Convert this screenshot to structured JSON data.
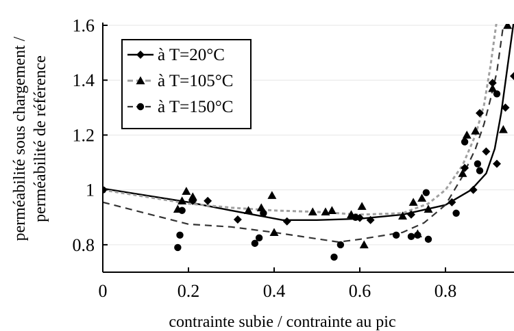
{
  "chart_data": {
    "type": "scatter",
    "xlabel": "contrainte subie / contrainte au pic",
    "ylabel_line1": "perméabilité sous chargement /",
    "ylabel_line2": "perméabilité de référence",
    "xlim": [
      0,
      0.96
    ],
    "ylim": [
      0.7,
      1.6
    ],
    "x_ticks": [
      0,
      0.2,
      0.4,
      0.6,
      0.8
    ],
    "x_tick_labels": [
      "0",
      "0.2",
      "0.4",
      "0.6",
      "0.8"
    ],
    "y_ticks": [
      0.8,
      1,
      1.2,
      1.4,
      1.6
    ],
    "y_tick_labels": [
      "0.8",
      "1",
      "1.2",
      "1.4",
      "1.6"
    ],
    "grid": "horizontal",
    "legend_position": "top-left",
    "series": [
      {
        "name": "à T=20°C",
        "marker": "diamond",
        "color": "#000000",
        "line_style": "solid",
        "points": [
          [
            0.0,
            1.0
          ],
          [
            0.21,
            0.96
          ],
          [
            0.245,
            0.96
          ],
          [
            0.315,
            0.892
          ],
          [
            0.43,
            0.885
          ],
          [
            0.6,
            0.898
          ],
          [
            0.625,
            0.89
          ],
          [
            0.72,
            0.91
          ],
          [
            0.815,
            0.955
          ],
          [
            0.845,
            1.08
          ],
          [
            0.865,
            1.0
          ],
          [
            0.88,
            1.28
          ],
          [
            0.895,
            1.14
          ],
          [
            0.91,
            1.39
          ],
          [
            0.92,
            1.095
          ],
          [
            0.94,
            1.3
          ],
          [
            0.96,
            1.415
          ]
        ],
        "curve": [
          [
            0.0,
            1.005
          ],
          [
            0.1,
            0.98
          ],
          [
            0.2,
            0.955
          ],
          [
            0.3,
            0.925
          ],
          [
            0.42,
            0.89
          ],
          [
            0.5,
            0.89
          ],
          [
            0.6,
            0.895
          ],
          [
            0.7,
            0.91
          ],
          [
            0.8,
            0.945
          ],
          [
            0.86,
            1.0
          ],
          [
            0.895,
            1.06
          ],
          [
            0.915,
            1.15
          ],
          [
            0.93,
            1.28
          ],
          [
            0.945,
            1.45
          ],
          [
            0.96,
            1.62
          ]
        ]
      },
      {
        "name": "à T=105°C",
        "marker": "triangle",
        "color": "#999999",
        "line_style": "dotted",
        "points": [
          [
            0.175,
            0.93
          ],
          [
            0.185,
            0.96
          ],
          [
            0.195,
            0.995
          ],
          [
            0.21,
            0.975
          ],
          [
            0.34,
            0.925
          ],
          [
            0.37,
            0.935
          ],
          [
            0.395,
            0.98
          ],
          [
            0.4,
            0.845
          ],
          [
            0.49,
            0.92
          ],
          [
            0.52,
            0.92
          ],
          [
            0.535,
            0.925
          ],
          [
            0.58,
            0.91
          ],
          [
            0.605,
            0.94
          ],
          [
            0.61,
            0.8
          ],
          [
            0.7,
            0.905
          ],
          [
            0.725,
            0.955
          ],
          [
            0.735,
            0.84
          ],
          [
            0.745,
            0.97
          ],
          [
            0.76,
            0.93
          ],
          [
            0.84,
            1.06
          ],
          [
            0.85,
            1.2
          ],
          [
            0.87,
            1.215
          ],
          [
            0.91,
            1.37
          ],
          [
            0.935,
            1.22
          ],
          [
            0.945,
            1.6
          ]
        ],
        "curve": [
          [
            0.0,
            1.0
          ],
          [
            0.1,
            0.975
          ],
          [
            0.2,
            0.95
          ],
          [
            0.3,
            0.935
          ],
          [
            0.4,
            0.925
          ],
          [
            0.5,
            0.92
          ],
          [
            0.6,
            0.91
          ],
          [
            0.7,
            0.915
          ],
          [
            0.76,
            0.95
          ],
          [
            0.8,
            1.0
          ],
          [
            0.84,
            1.09
          ],
          [
            0.87,
            1.2
          ],
          [
            0.89,
            1.31
          ],
          [
            0.905,
            1.45
          ],
          [
            0.92,
            1.62
          ]
        ]
      },
      {
        "name": "à T=150°C",
        "marker": "circle",
        "color": "#000000",
        "line_style": "dashed",
        "points": [
          [
            0.0,
            1.0
          ],
          [
            0.175,
            0.79
          ],
          [
            0.18,
            0.835
          ],
          [
            0.185,
            0.925
          ],
          [
            0.355,
            0.805
          ],
          [
            0.365,
            0.825
          ],
          [
            0.375,
            0.915
          ],
          [
            0.54,
            0.755
          ],
          [
            0.555,
            0.8
          ],
          [
            0.59,
            0.9
          ],
          [
            0.685,
            0.835
          ],
          [
            0.72,
            0.83
          ],
          [
            0.735,
            0.835
          ],
          [
            0.755,
            0.99
          ],
          [
            0.76,
            0.82
          ],
          [
            0.825,
            0.915
          ],
          [
            0.845,
            1.175
          ],
          [
            0.875,
            1.095
          ],
          [
            0.88,
            1.07
          ],
          [
            0.92,
            1.35
          ]
        ],
        "curve": [
          [
            0.0,
            0.955
          ],
          [
            0.1,
            0.915
          ],
          [
            0.2,
            0.875
          ],
          [
            0.3,
            0.865
          ],
          [
            0.4,
            0.845
          ],
          [
            0.55,
            0.81
          ],
          [
            0.6,
            0.82
          ],
          [
            0.7,
            0.845
          ],
          [
            0.75,
            0.88
          ],
          [
            0.8,
            0.945
          ],
          [
            0.84,
            1.05
          ],
          [
            0.87,
            1.15
          ],
          [
            0.89,
            1.24
          ],
          [
            0.905,
            1.33
          ],
          [
            0.92,
            1.43
          ],
          [
            0.935,
            1.6
          ]
        ]
      }
    ]
  }
}
